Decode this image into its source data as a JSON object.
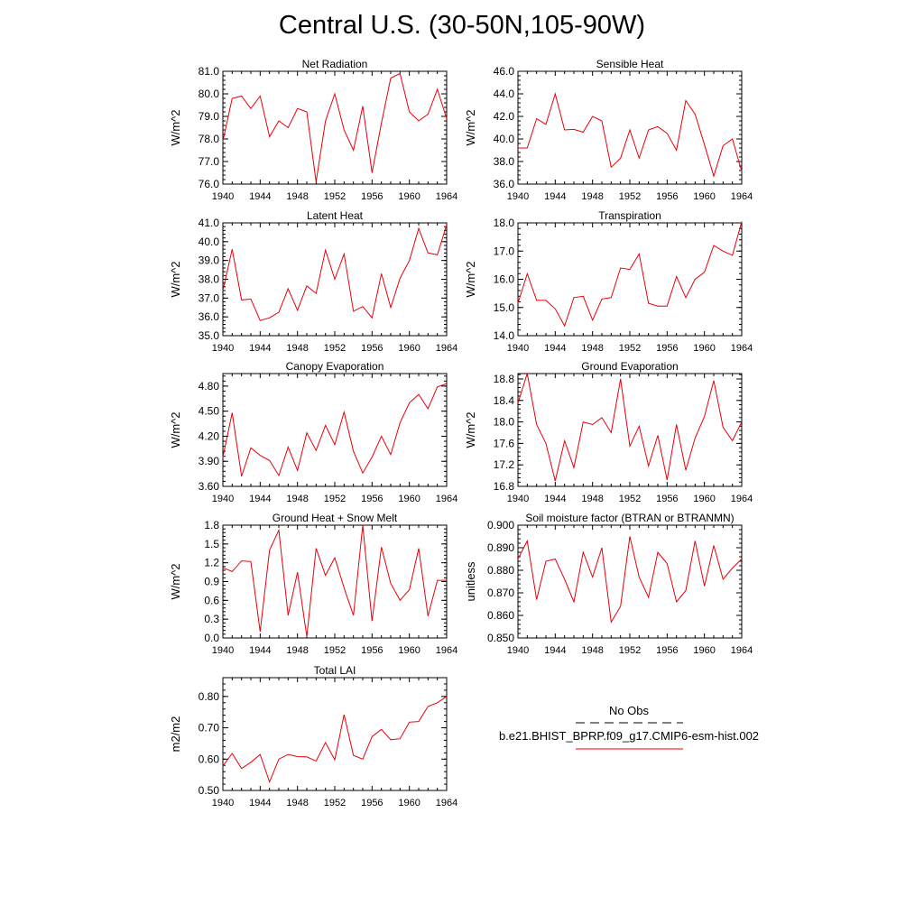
{
  "page_title": "Central U.S. (30-50N,105-90W)",
  "series_color": "#e8000b",
  "obs_color": "#000000",
  "legend": {
    "obs_label": "No Obs",
    "model_label": "b.e21.BHIST_BPRP.f09_g17.CMIP6-esm-hist.002"
  },
  "chart_data": [
    {
      "type": "line",
      "title": "Net Radiation",
      "xlabel": "",
      "ylabel": "W/m^2",
      "xlim": [
        1940,
        1964
      ],
      "ylim": [
        76.0,
        81.0
      ],
      "yticks": [
        "76.0",
        "77.0",
        "78.0",
        "79.0",
        "80.0",
        "81.0"
      ],
      "xticks": [
        "1940",
        "1944",
        "1948",
        "1952",
        "1956",
        "1960",
        "1964"
      ],
      "x": [
        1940,
        1941,
        1942,
        1943,
        1944,
        1945,
        1946,
        1947,
        1948,
        1949,
        1950,
        1951,
        1952,
        1953,
        1954,
        1955,
        1956,
        1957,
        1958,
        1959,
        1960,
        1961,
        1962,
        1963,
        1964
      ],
      "values": [
        77.9,
        79.8,
        79.9,
        79.35,
        79.9,
        78.1,
        78.8,
        78.5,
        79.35,
        79.2,
        76.1,
        78.8,
        80.0,
        78.4,
        77.5,
        79.45,
        76.5,
        78.7,
        80.7,
        80.9,
        79.2,
        78.8,
        79.1,
        80.2,
        78.9
      ]
    },
    {
      "type": "line",
      "title": "Sensible Heat",
      "xlabel": "",
      "ylabel": "W/m^2",
      "xlim": [
        1940,
        1964
      ],
      "ylim": [
        36.0,
        46.0
      ],
      "yticks": [
        "36.0",
        "38.0",
        "40.0",
        "42.0",
        "44.0",
        "46.0"
      ],
      "xticks": [
        "1940",
        "1944",
        "1948",
        "1952",
        "1956",
        "1960",
        "1964"
      ],
      "x": [
        1940,
        1941,
        1942,
        1943,
        1944,
        1945,
        1946,
        1947,
        1948,
        1949,
        1950,
        1951,
        1952,
        1953,
        1954,
        1955,
        1956,
        1957,
        1958,
        1959,
        1960,
        1961,
        1962,
        1963,
        1964
      ],
      "values": [
        39.2,
        39.2,
        41.8,
        41.3,
        44.0,
        40.8,
        40.85,
        40.6,
        42.0,
        41.6,
        37.5,
        38.3,
        40.8,
        38.3,
        40.8,
        41.1,
        40.5,
        39.0,
        43.4,
        42.2,
        39.5,
        36.7,
        39.4,
        40.0,
        37.1
      ]
    },
    {
      "type": "line",
      "title": "Latent Heat",
      "xlabel": "",
      "ylabel": "W/m^2",
      "xlim": [
        1940,
        1964
      ],
      "ylim": [
        35.0,
        41.0
      ],
      "yticks": [
        "35.0",
        "36.0",
        "37.0",
        "38.0",
        "39.0",
        "40.0",
        "41.0"
      ],
      "xticks": [
        "1940",
        "1944",
        "1948",
        "1952",
        "1956",
        "1960",
        "1964"
      ],
      "x": [
        1940,
        1941,
        1942,
        1943,
        1944,
        1945,
        1946,
        1947,
        1948,
        1949,
        1950,
        1951,
        1952,
        1953,
        1954,
        1955,
        1956,
        1957,
        1958,
        1959,
        1960,
        1961,
        1962,
        1963,
        1964
      ],
      "values": [
        37.4,
        39.6,
        36.9,
        36.95,
        35.8,
        35.95,
        36.25,
        37.5,
        36.35,
        37.65,
        37.25,
        39.55,
        38.0,
        39.35,
        36.3,
        36.55,
        35.95,
        38.3,
        36.5,
        38.05,
        39.0,
        40.7,
        39.4,
        39.3,
        40.9
      ]
    },
    {
      "type": "line",
      "title": "Transpiration",
      "xlabel": "",
      "ylabel": "W/m^2",
      "xlim": [
        1940,
        1964
      ],
      "ylim": [
        14.0,
        18.0
      ],
      "yticks": [
        "14.0",
        "15.0",
        "16.0",
        "17.0",
        "18.0"
      ],
      "xticks": [
        "1940",
        "1944",
        "1948",
        "1952",
        "1956",
        "1960",
        "1964"
      ],
      "x": [
        1940,
        1941,
        1942,
        1943,
        1944,
        1945,
        1946,
        1947,
        1948,
        1949,
        1950,
        1951,
        1952,
        1953,
        1954,
        1955,
        1956,
        1957,
        1958,
        1959,
        1960,
        1961,
        1962,
        1963,
        1964
      ],
      "values": [
        15.15,
        16.2,
        15.25,
        15.25,
        14.95,
        14.35,
        15.35,
        15.4,
        14.55,
        15.3,
        15.35,
        16.4,
        16.35,
        16.9,
        15.15,
        15.05,
        15.05,
        16.1,
        15.35,
        16.0,
        16.25,
        17.2,
        17.0,
        16.85,
        18.05
      ]
    },
    {
      "type": "line",
      "title": "Canopy Evaporation",
      "xlabel": "",
      "ylabel": "W/m^2",
      "xlim": [
        1940,
        1964
      ],
      "ylim": [
        3.6,
        4.95
      ],
      "yticks": [
        "3.60",
        "3.90",
        "4.20",
        "4.50",
        "4.80"
      ],
      "xticks": [
        "1940",
        "1944",
        "1948",
        "1952",
        "1956",
        "1960",
        "1964"
      ],
      "x": [
        1940,
        1941,
        1942,
        1943,
        1944,
        1945,
        1946,
        1947,
        1948,
        1949,
        1950,
        1951,
        1952,
        1953,
        1954,
        1955,
        1956,
        1957,
        1958,
        1959,
        1960,
        1961,
        1962,
        1963,
        1964
      ],
      "values": [
        3.95,
        4.48,
        3.72,
        4.06,
        3.97,
        3.91,
        3.73,
        4.07,
        3.79,
        4.24,
        4.03,
        4.33,
        4.1,
        4.49,
        4.02,
        3.76,
        3.95,
        4.2,
        3.98,
        4.36,
        4.6,
        4.7,
        4.53,
        4.79,
        4.83
      ]
    },
    {
      "type": "line",
      "title": "Ground Evaporation",
      "xlabel": "",
      "ylabel": "W/m^2",
      "xlim": [
        1940,
        1964
      ],
      "ylim": [
        16.8,
        18.9
      ],
      "yticks": [
        "16.8",
        "17.2",
        "17.6",
        "18.0",
        "18.4",
        "18.8"
      ],
      "xticks": [
        "1940",
        "1944",
        "1948",
        "1952",
        "1956",
        "1960",
        "1964"
      ],
      "x": [
        1940,
        1941,
        1942,
        1943,
        1944,
        1945,
        1946,
        1947,
        1948,
        1949,
        1950,
        1951,
        1952,
        1953,
        1954,
        1955,
        1956,
        1957,
        1958,
        1959,
        1960,
        1961,
        1962,
        1963,
        1964
      ],
      "values": [
        18.35,
        18.9,
        17.95,
        17.6,
        16.9,
        17.65,
        17.15,
        18.0,
        17.95,
        18.08,
        17.8,
        18.8,
        17.55,
        17.92,
        17.18,
        17.75,
        16.92,
        17.95,
        17.1,
        17.7,
        18.1,
        18.77,
        17.9,
        17.65,
        18.0
      ]
    },
    {
      "type": "line",
      "title": "Ground Heat + Snow Melt",
      "xlabel": "",
      "ylabel": "W/m^2",
      "xlim": [
        1940,
        1964
      ],
      "ylim": [
        0.0,
        1.8
      ],
      "yticks": [
        "0.0",
        "0.3",
        "0.6",
        "0.9",
        "1.2",
        "1.5",
        "1.8"
      ],
      "xticks": [
        "1940",
        "1944",
        "1948",
        "1952",
        "1956",
        "1960",
        "1964"
      ],
      "x": [
        1940,
        1941,
        1942,
        1943,
        1944,
        1945,
        1946,
        1947,
        1948,
        1949,
        1950,
        1951,
        1952,
        1953,
        1954,
        1955,
        1956,
        1957,
        1958,
        1959,
        1960,
        1961,
        1962,
        1963,
        1964
      ],
      "values": [
        1.12,
        1.06,
        1.23,
        1.22,
        0.1,
        1.4,
        1.72,
        0.36,
        1.05,
        0.02,
        1.43,
        1.0,
        1.28,
        0.8,
        0.36,
        1.8,
        0.27,
        1.45,
        0.87,
        0.6,
        0.77,
        1.43,
        0.35,
        0.92,
        0.92
      ]
    },
    {
      "type": "line",
      "title": "Soil moisture factor (BTRAN or BTRANMN)",
      "xlabel": "",
      "ylabel": "unitless",
      "xlim": [
        1940,
        1964
      ],
      "ylim": [
        0.85,
        0.9
      ],
      "yticks": [
        "0.850",
        "0.860",
        "0.870",
        "0.880",
        "0.890",
        "0.900"
      ],
      "xticks": [
        "1940",
        "1944",
        "1948",
        "1952",
        "1956",
        "1960",
        "1964"
      ],
      "x": [
        1940,
        1941,
        1942,
        1943,
        1944,
        1945,
        1946,
        1947,
        1948,
        1949,
        1950,
        1951,
        1952,
        1953,
        1954,
        1955,
        1956,
        1957,
        1958,
        1959,
        1960,
        1961,
        1962,
        1963,
        1964
      ],
      "values": [
        0.885,
        0.893,
        0.867,
        0.884,
        0.885,
        0.876,
        0.866,
        0.888,
        0.877,
        0.89,
        0.857,
        0.864,
        0.895,
        0.877,
        0.868,
        0.888,
        0.883,
        0.866,
        0.871,
        0.893,
        0.873,
        0.891,
        0.876,
        0.881,
        0.885
      ]
    },
    {
      "type": "line",
      "title": "Total LAI",
      "xlabel": "",
      "ylabel": "m2/m2",
      "xlim": [
        1940,
        1964
      ],
      "ylim": [
        0.5,
        0.86
      ],
      "yticks": [
        "0.50",
        "0.60",
        "0.70",
        "0.80"
      ],
      "xticks": [
        "1940",
        "1944",
        "1948",
        "1952",
        "1956",
        "1960",
        "1964"
      ],
      "x": [
        1940,
        1941,
        1942,
        1943,
        1944,
        1945,
        1946,
        1947,
        1948,
        1949,
        1950,
        1951,
        1952,
        1953,
        1954,
        1955,
        1956,
        1957,
        1958,
        1959,
        1960,
        1961,
        1962,
        1963,
        1964
      ],
      "values": [
        0.578,
        0.618,
        0.57,
        0.59,
        0.615,
        0.527,
        0.6,
        0.615,
        0.608,
        0.607,
        0.594,
        0.653,
        0.598,
        0.742,
        0.612,
        0.6,
        0.672,
        0.695,
        0.662,
        0.665,
        0.718,
        0.72,
        0.768,
        0.78,
        0.8
      ]
    }
  ]
}
